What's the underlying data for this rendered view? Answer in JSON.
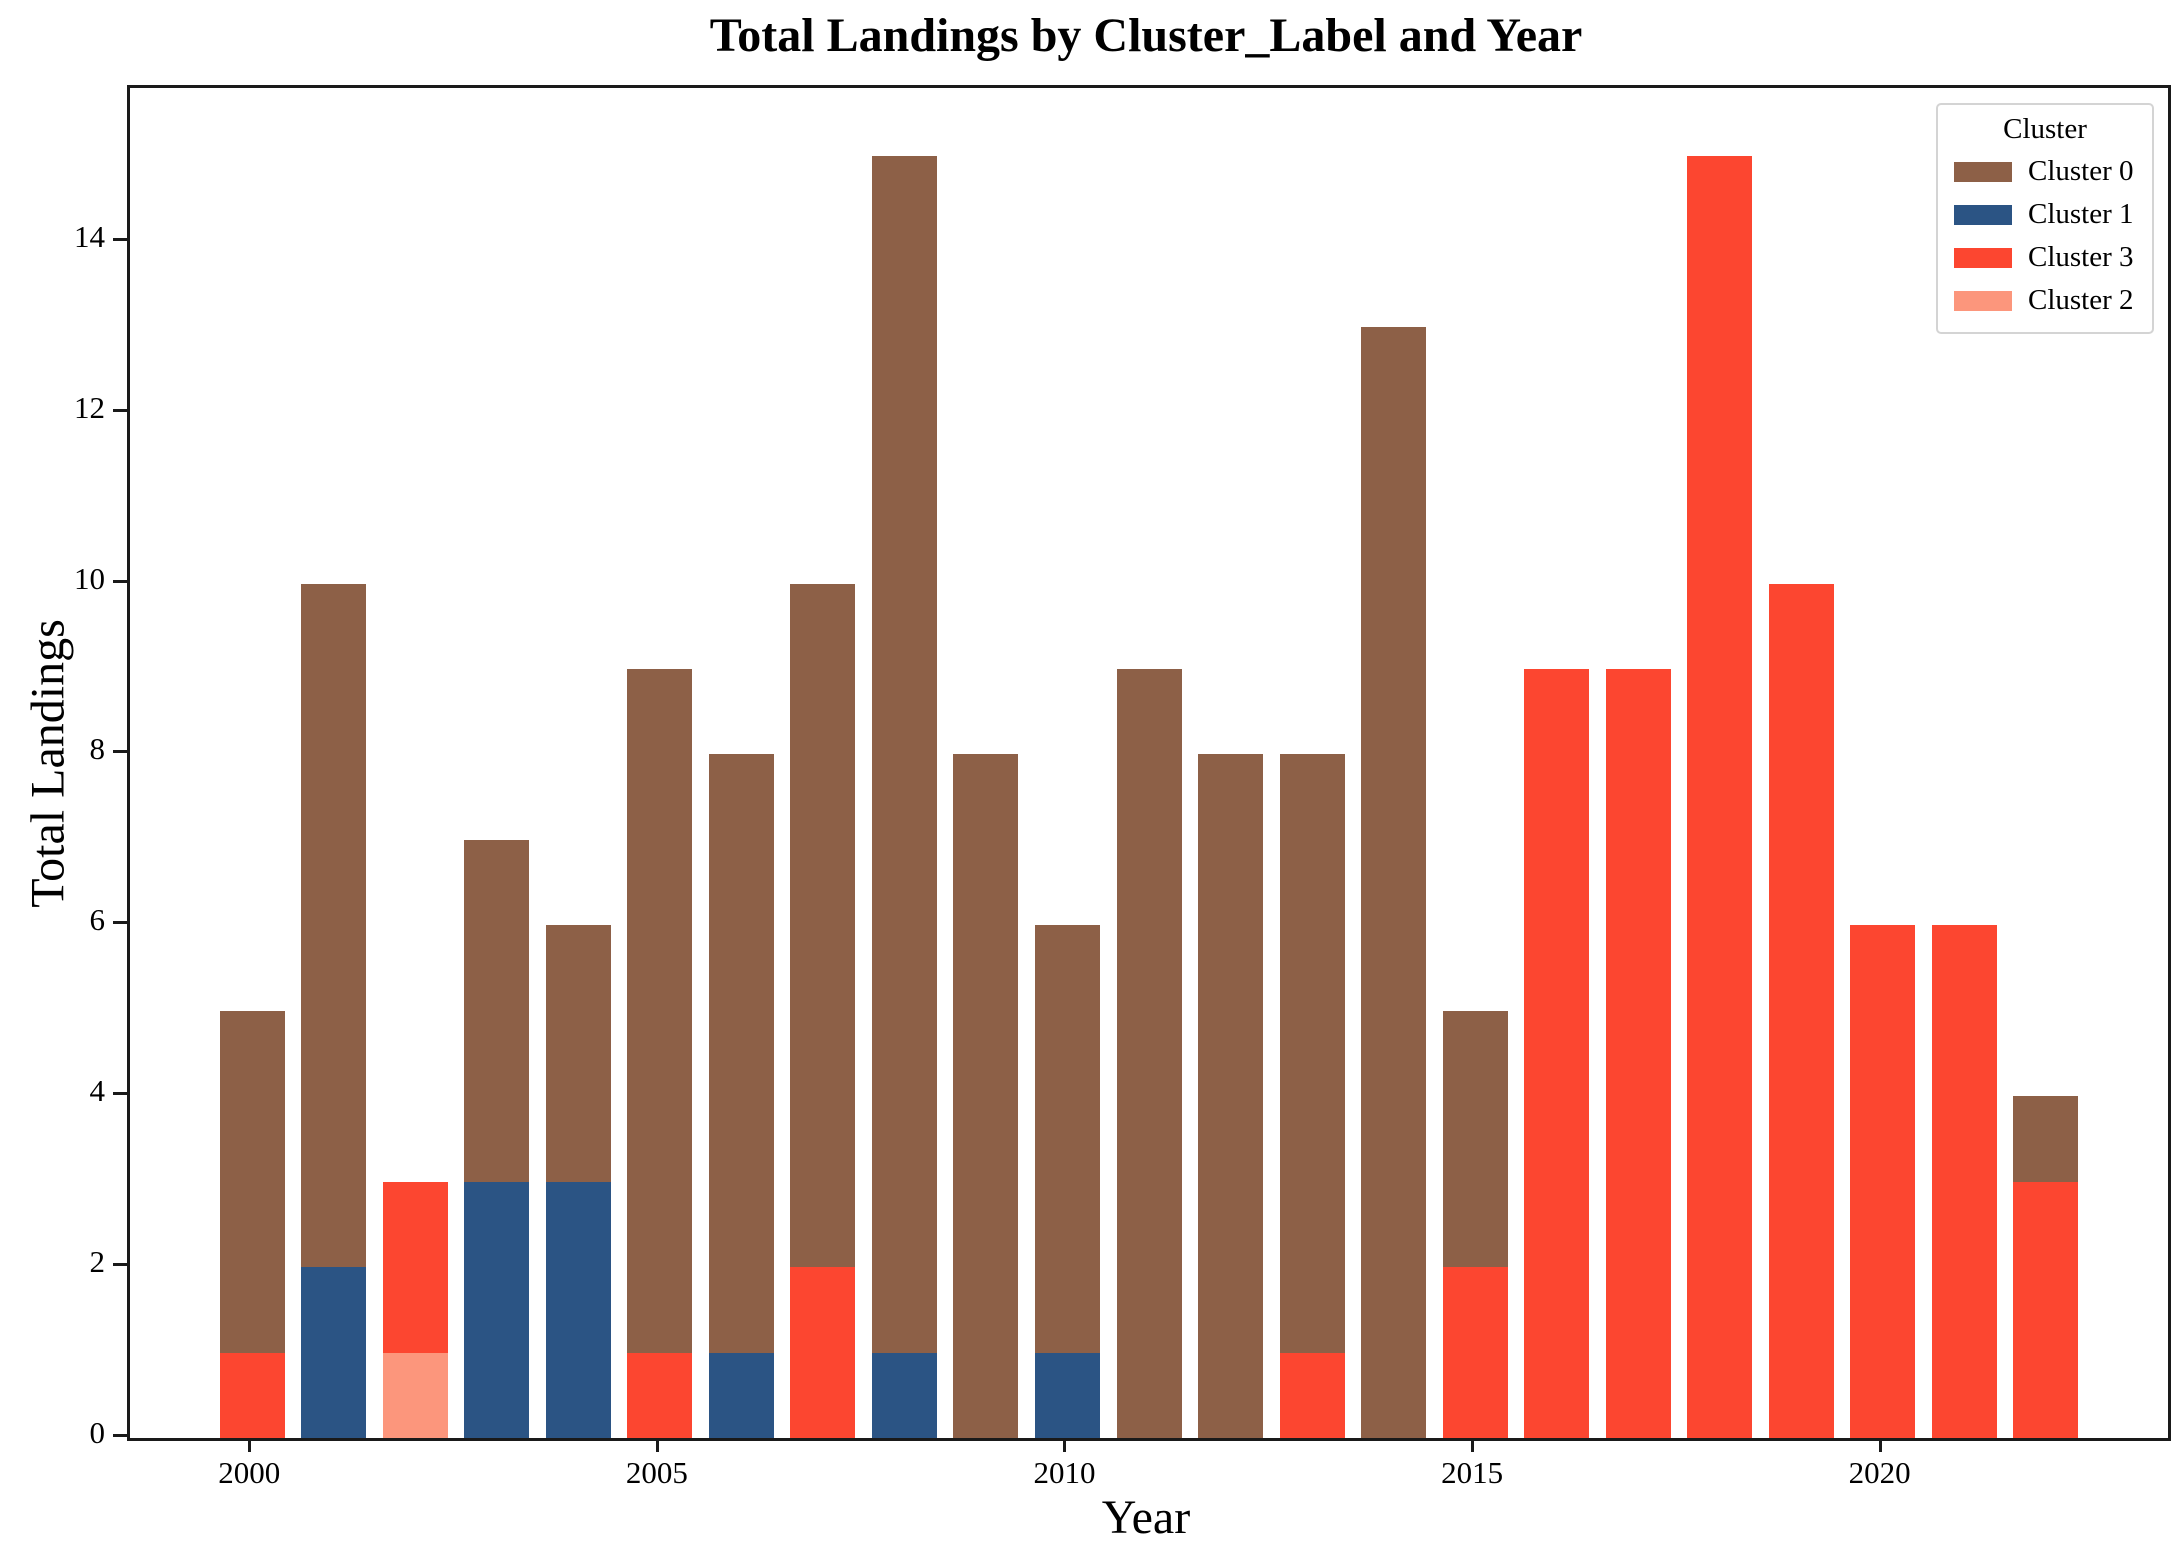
{
  "chart_data": {
    "type": "bar",
    "stacked": true,
    "title": "Total Landings by Cluster_Label and Year",
    "xlabel": "Year",
    "ylabel": "Total Landings",
    "ylim": [
      0,
      15.8
    ],
    "yticks": [
      0,
      2,
      4,
      6,
      8,
      10,
      12,
      14
    ],
    "xtick_years": [
      2000,
      2005,
      2010,
      2015,
      2020
    ],
    "xlim": [
      1998.5,
      2023.5
    ],
    "grid": false,
    "categories": [
      2000,
      2001,
      2002,
      2003,
      2004,
      2005,
      2006,
      2007,
      2008,
      2009,
      2010,
      2011,
      2012,
      2013,
      2014,
      2015,
      2016,
      2017,
      2018,
      2019,
      2020,
      2021,
      2022
    ],
    "series": [
      {
        "name": "Cluster 0",
        "color": "#8D6047",
        "values": [
          4,
          8,
          0,
          4,
          3,
          8,
          7,
          8,
          14,
          8,
          5,
          9,
          8,
          7,
          13,
          3,
          0,
          0,
          0,
          0,
          0,
          0,
          1
        ]
      },
      {
        "name": "Cluster 1",
        "color": "#2B5484",
        "values": [
          0,
          2,
          0,
          3,
          3,
          0,
          1,
          0,
          1,
          0,
          1,
          0,
          0,
          0,
          0,
          0,
          0,
          0,
          0,
          0,
          0,
          0,
          0
        ]
      },
      {
        "name": "Cluster 3",
        "color": "#FC4630",
        "values": [
          1,
          0,
          2,
          0,
          0,
          1,
          0,
          2,
          0,
          0,
          0,
          0,
          0,
          1,
          0,
          2,
          9,
          9,
          15,
          10,
          6,
          6,
          3
        ]
      },
      {
        "name": "Cluster 2",
        "color": "#FC967C",
        "values": [
          0,
          0,
          1,
          0,
          0,
          0,
          0,
          0,
          0,
          0,
          0,
          0,
          0,
          0,
          0,
          0,
          0,
          0,
          0,
          0,
          0,
          0,
          0
        ]
      }
    ],
    "stack_order_bottom_to_top": [
      "Cluster 2",
      "Cluster 3",
      "Cluster 1",
      "Cluster 0"
    ],
    "legend": {
      "title": "Cluster",
      "position": "upper right",
      "entries": [
        {
          "label": "Cluster 0",
          "color": "#8D6047"
        },
        {
          "label": "Cluster 1",
          "color": "#2B5484"
        },
        {
          "label": "Cluster 3",
          "color": "#FC4630"
        },
        {
          "label": "Cluster 2",
          "color": "#FC967C"
        }
      ]
    },
    "totals_by_year": [
      5,
      10,
      3,
      7,
      6,
      9,
      8,
      10,
      15,
      8,
      6,
      9,
      8,
      8,
      13,
      5,
      9,
      9,
      15,
      10,
      6,
      6,
      4
    ]
  },
  "style_colors": {
    "axis": "#1a1a1a",
    "legend_border": "#d4d4d4",
    "background": "#ffffff"
  }
}
